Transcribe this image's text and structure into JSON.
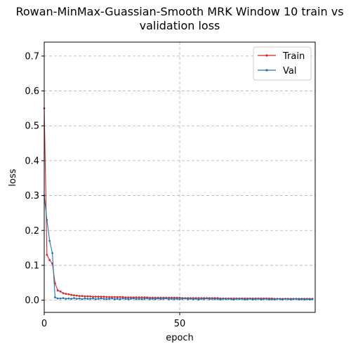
{
  "chart_data": {
    "type": "line",
    "title": "Rowan-MinMax-Guassian-Smooth MRK Window 10 train vs validation loss",
    "title_lines": [
      "Rowan-MinMax-Guassian-Smooth MRK Window 10 train vs",
      "validation loss"
    ],
    "xlabel": "epoch",
    "ylabel": "loss",
    "xlim": [
      0,
      100
    ],
    "ylim": [
      -0.035,
      0.74
    ],
    "x_ticks": [
      0,
      50
    ],
    "y_ticks": [
      0.0,
      0.1,
      0.2,
      0.3,
      0.4,
      0.5,
      0.6,
      0.7
    ],
    "x_tick_labels": [
      "0",
      "50"
    ],
    "y_tick_labels": [
      "0.0",
      "0.1",
      "0.2",
      "0.3",
      "0.4",
      "0.5",
      "0.6",
      "0.7"
    ],
    "grid": true,
    "legend_position": "top-right",
    "series": [
      {
        "name": "Train",
        "color": "#d62728",
        "x": [
          0,
          1,
          2,
          3,
          4,
          5,
          6,
          7,
          8,
          9,
          10,
          11,
          12,
          13,
          14,
          15,
          16,
          17,
          18,
          19,
          20,
          21,
          22,
          23,
          24,
          25,
          26,
          27,
          28,
          29,
          30,
          31,
          32,
          33,
          34,
          35,
          36,
          37,
          38,
          39,
          40,
          41,
          42,
          43,
          44,
          45,
          46,
          47,
          48,
          49,
          50,
          51,
          52,
          53,
          54,
          55,
          56,
          57,
          58,
          59,
          60,
          61,
          62,
          63,
          64,
          65,
          66,
          67,
          68,
          69,
          70,
          71,
          72,
          73,
          74,
          75,
          76,
          77,
          78,
          79,
          80,
          81,
          82,
          83,
          84,
          85,
          86,
          87,
          88,
          89,
          90,
          91,
          92,
          93,
          94,
          95,
          96,
          97,
          98,
          99
        ],
        "y": [
          0.55,
          0.13,
          0.115,
          0.105,
          0.048,
          0.028,
          0.025,
          0.02,
          0.018,
          0.017,
          0.015,
          0.014,
          0.013,
          0.012,
          0.012,
          0.011,
          0.011,
          0.011,
          0.01,
          0.01,
          0.01,
          0.01,
          0.01,
          0.009,
          0.009,
          0.009,
          0.009,
          0.009,
          0.009,
          0.009,
          0.008,
          0.008,
          0.008,
          0.008,
          0.008,
          0.008,
          0.008,
          0.008,
          0.008,
          0.007,
          0.007,
          0.007,
          0.007,
          0.007,
          0.007,
          0.007,
          0.007,
          0.007,
          0.007,
          0.007,
          0.007,
          0.006,
          0.006,
          0.006,
          0.006,
          0.006,
          0.006,
          0.006,
          0.006,
          0.006,
          0.006,
          0.006,
          0.006,
          0.006,
          0.006,
          0.005,
          0.005,
          0.005,
          0.005,
          0.005,
          0.005,
          0.005,
          0.005,
          0.005,
          0.005,
          0.005,
          0.005,
          0.005,
          0.005,
          0.005,
          0.005,
          0.005,
          0.005,
          0.005,
          0.005,
          0.004,
          0.004,
          0.004,
          0.004,
          0.004,
          0.004,
          0.004,
          0.004,
          0.004,
          0.004,
          0.004,
          0.004,
          0.004,
          0.004,
          0.004
        ]
      },
      {
        "name": "Val",
        "color": "#1f77b4",
        "x": [
          0,
          1,
          2,
          3,
          4,
          5,
          6,
          7,
          8,
          9,
          10,
          11,
          12,
          13,
          14,
          15,
          16,
          17,
          18,
          19,
          20,
          21,
          22,
          23,
          24,
          25,
          26,
          27,
          28,
          29,
          30,
          31,
          32,
          33,
          34,
          35,
          36,
          37,
          38,
          39,
          40,
          41,
          42,
          43,
          44,
          45,
          46,
          47,
          48,
          49,
          50,
          51,
          52,
          53,
          54,
          55,
          56,
          57,
          58,
          59,
          60,
          61,
          62,
          63,
          64,
          65,
          66,
          67,
          68,
          69,
          70,
          71,
          72,
          73,
          74,
          75,
          76,
          77,
          78,
          79,
          80,
          81,
          82,
          83,
          84,
          85,
          86,
          87,
          88,
          89,
          90,
          91,
          92,
          93,
          94,
          95,
          96,
          97,
          98,
          99
        ],
        "y": [
          0.3,
          0.23,
          0.17,
          0.135,
          0.008,
          0.005,
          0.005,
          0.006,
          0.004,
          0.005,
          0.004,
          0.006,
          0.004,
          0.005,
          0.003,
          0.005,
          0.004,
          0.004,
          0.005,
          0.003,
          0.004,
          0.005,
          0.004,
          0.003,
          0.004,
          0.005,
          0.003,
          0.004,
          0.003,
          0.005,
          0.004,
          0.003,
          0.004,
          0.005,
          0.003,
          0.004,
          0.003,
          0.004,
          0.005,
          0.003,
          0.004,
          0.003,
          0.005,
          0.003,
          0.004,
          0.005,
          0.003,
          0.004,
          0.003,
          0.004,
          0.003,
          0.004,
          0.005,
          0.003,
          0.004,
          0.003,
          0.004,
          0.002,
          0.004,
          0.003,
          0.005,
          0.003,
          0.004,
          0.003,
          0.004,
          0.002,
          0.004,
          0.003,
          0.004,
          0.003,
          0.002,
          0.004,
          0.003,
          0.004,
          0.002,
          0.003,
          0.004,
          0.002,
          0.003,
          0.004,
          0.002,
          0.003,
          0.004,
          0.002,
          0.003,
          0.002,
          0.004,
          0.003,
          0.002,
          0.004,
          0.003,
          0.002,
          0.003,
          0.004,
          0.002,
          0.003,
          0.002,
          0.003,
          0.002,
          0.003
        ]
      }
    ]
  }
}
